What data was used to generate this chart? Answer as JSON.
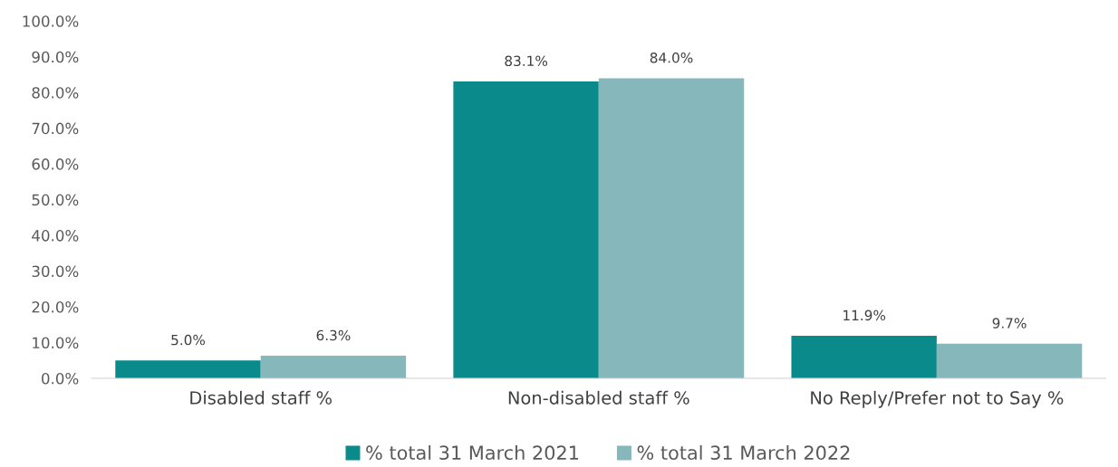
{
  "chart_data": {
    "type": "bar",
    "categories": [
      "Disabled staff %",
      "Non-disabled staff %",
      "No Reply/Prefer not to Say %"
    ],
    "series": [
      {
        "name": "% total 31 March 2021",
        "color": "#0a8a8a",
        "values": [
          5.0,
          83.1,
          11.9
        ],
        "value_labels": [
          "5.0%",
          "83.1%",
          "11.9%"
        ]
      },
      {
        "name": "% total 31 March 2022",
        "color": "#86b8bb",
        "values": [
          6.3,
          84.0,
          9.7
        ],
        "value_labels": [
          "6.3%",
          "84.0%",
          "9.7%"
        ]
      }
    ],
    "ylim": [
      0,
      100
    ],
    "yticks": [
      {
        "value": 0,
        "label": "0.0%"
      },
      {
        "value": 10,
        "label": "10.0%"
      },
      {
        "value": 20,
        "label": "20.0%"
      },
      {
        "value": 30,
        "label": "30.0%"
      },
      {
        "value": 40,
        "label": "40.0%"
      },
      {
        "value": 50,
        "label": "50.0%"
      },
      {
        "value": 60,
        "label": "60.0%"
      },
      {
        "value": 70,
        "label": "70.0%"
      },
      {
        "value": 80,
        "label": "80.0%"
      },
      {
        "value": 90,
        "label": "90.0%"
      },
      {
        "value": 100,
        "label": "100.0%"
      }
    ],
    "grid": false,
    "legend": "bottom"
  }
}
